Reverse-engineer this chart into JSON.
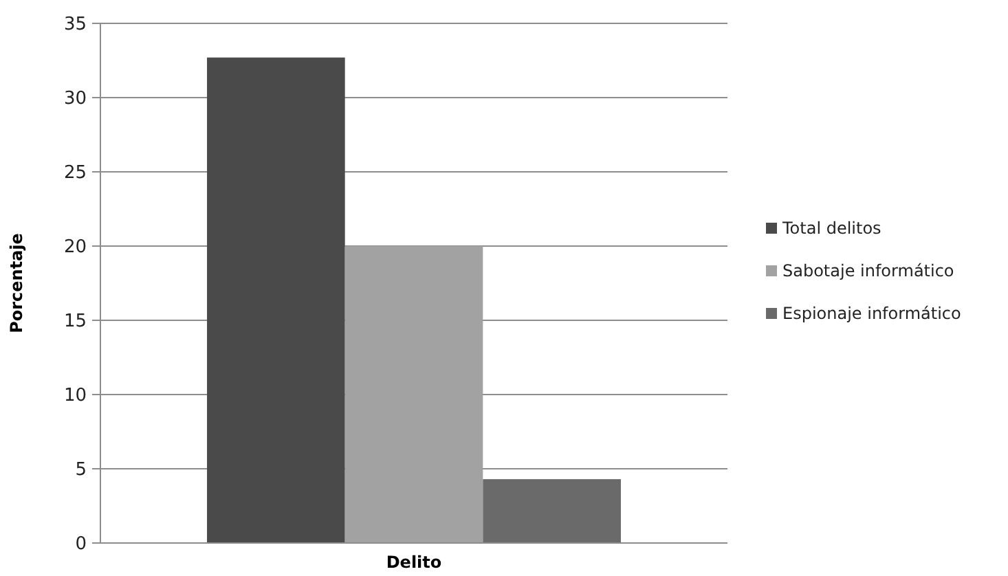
{
  "chart_data": {
    "type": "bar",
    "xlabel": "Delito",
    "ylabel": "Porcentaje",
    "categories": [
      null
    ],
    "series": [
      {
        "name": "Total delitos",
        "color": "#4a4a4a",
        "values": [
          32.7
        ]
      },
      {
        "name": "Sabotaje informático",
        "color": "#a2a2a2",
        "values": [
          20
        ]
      },
      {
        "name": "Espionaje informático",
        "color": "#6a6a6a",
        "values": [
          4.3
        ]
      }
    ],
    "ylim": [
      0,
      35
    ],
    "yticks": [
      0,
      5,
      10,
      15,
      20,
      25,
      30,
      35
    ],
    "grid": "y",
    "legend": "right"
  }
}
